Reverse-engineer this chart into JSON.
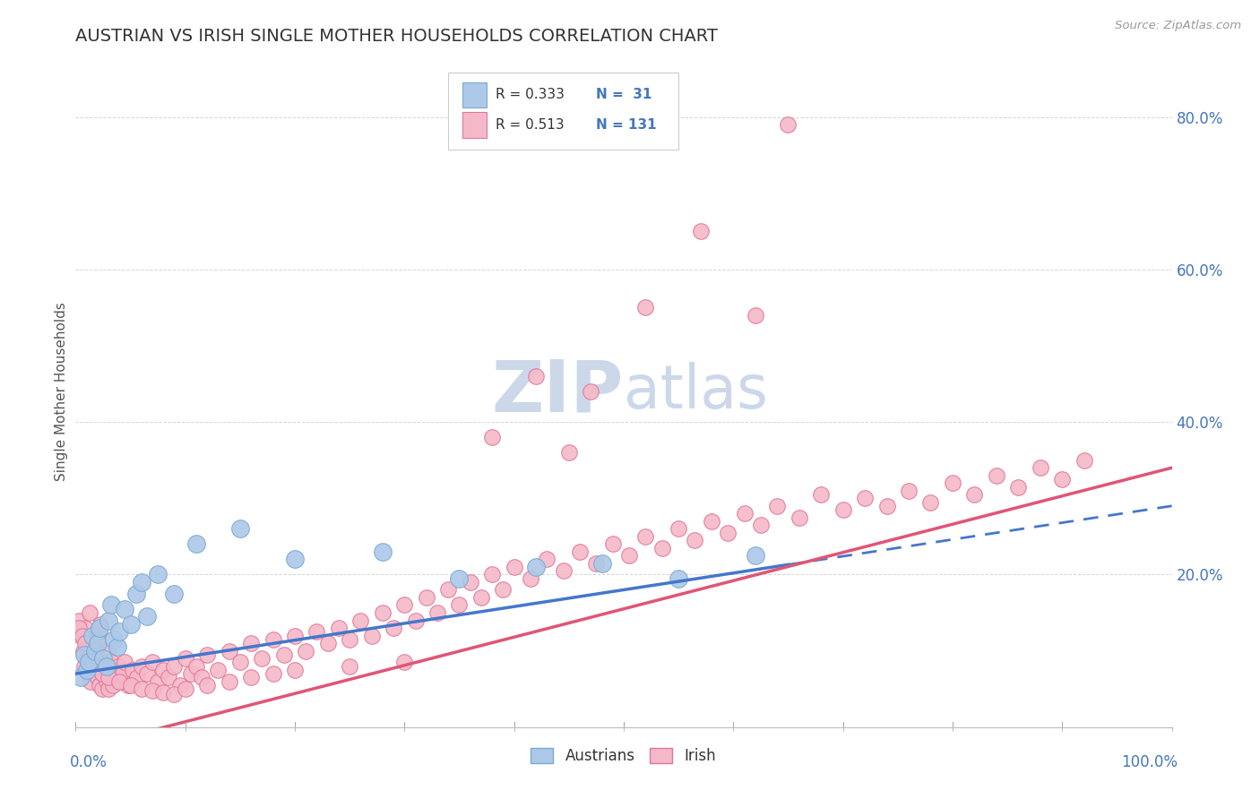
{
  "title": "AUSTRIAN VS IRISH SINGLE MOTHER HOUSEHOLDS CORRELATION CHART",
  "source_text": "Source: ZipAtlas.com",
  "ylabel": "Single Mother Households",
  "ytick_values": [
    0.0,
    0.2,
    0.4,
    0.6,
    0.8
  ],
  "ytick_labels": [
    "",
    "20.0%",
    "40.0%",
    "60.0%",
    "80.0%"
  ],
  "xlim": [
    0.0,
    1.0
  ],
  "ylim": [
    0.0,
    0.88
  ],
  "austrian_R": "0.333",
  "austrian_N": "31",
  "irish_R": "0.513",
  "irish_N": "131",
  "austrian_color": "#adc8e8",
  "austrian_edge": "#7aaad0",
  "irish_color": "#f5b8c8",
  "irish_edge": "#e07898",
  "austrian_line_color": "#4477cc",
  "irish_line_color": "#e05575",
  "background_color": "#ffffff",
  "grid_color": "#cccccc",
  "title_color": "#333333",
  "axis_label_color": "#4477bb",
  "watermark_color": "#ccd8ea",
  "legend_box_color": "#cccccc",
  "aus_line_intercept": 0.07,
  "aus_line_slope": 0.22,
  "ire_line_intercept": -0.03,
  "ire_line_slope": 0.37,
  "austrian_x": [
    0.005,
    0.008,
    0.01,
    0.012,
    0.015,
    0.018,
    0.02,
    0.022,
    0.025,
    0.028,
    0.03,
    0.032,
    0.035,
    0.038,
    0.04,
    0.045,
    0.05,
    0.055,
    0.06,
    0.065,
    0.075,
    0.09,
    0.11,
    0.15,
    0.2,
    0.28,
    0.35,
    0.42,
    0.48,
    0.55,
    0.62
  ],
  "austrian_y": [
    0.065,
    0.095,
    0.075,
    0.085,
    0.12,
    0.1,
    0.11,
    0.13,
    0.09,
    0.08,
    0.14,
    0.16,
    0.115,
    0.105,
    0.125,
    0.155,
    0.135,
    0.175,
    0.19,
    0.145,
    0.2,
    0.175,
    0.24,
    0.26,
    0.22,
    0.23,
    0.195,
    0.21,
    0.215,
    0.195,
    0.225
  ],
  "irish_x": [
    0.003,
    0.005,
    0.007,
    0.008,
    0.009,
    0.01,
    0.011,
    0.012,
    0.013,
    0.014,
    0.015,
    0.016,
    0.017,
    0.018,
    0.019,
    0.02,
    0.021,
    0.022,
    0.023,
    0.024,
    0.025,
    0.026,
    0.027,
    0.028,
    0.029,
    0.03,
    0.031,
    0.032,
    0.033,
    0.034,
    0.035,
    0.037,
    0.039,
    0.041,
    0.043,
    0.045,
    0.048,
    0.052,
    0.056,
    0.06,
    0.065,
    0.07,
    0.075,
    0.08,
    0.085,
    0.09,
    0.095,
    0.1,
    0.105,
    0.11,
    0.115,
    0.12,
    0.13,
    0.14,
    0.15,
    0.16,
    0.17,
    0.18,
    0.19,
    0.2,
    0.21,
    0.22,
    0.23,
    0.24,
    0.25,
    0.26,
    0.27,
    0.28,
    0.29,
    0.3,
    0.31,
    0.32,
    0.33,
    0.34,
    0.35,
    0.36,
    0.37,
    0.38,
    0.39,
    0.4,
    0.415,
    0.43,
    0.445,
    0.46,
    0.475,
    0.49,
    0.505,
    0.52,
    0.535,
    0.55,
    0.565,
    0.58,
    0.595,
    0.61,
    0.625,
    0.64,
    0.66,
    0.68,
    0.7,
    0.72,
    0.74,
    0.76,
    0.78,
    0.8,
    0.82,
    0.84,
    0.86,
    0.88,
    0.9,
    0.92,
    0.003,
    0.006,
    0.009,
    0.012,
    0.018,
    0.024,
    0.03,
    0.04,
    0.05,
    0.06,
    0.07,
    0.08,
    0.09,
    0.1,
    0.12,
    0.14,
    0.16,
    0.18,
    0.2,
    0.25,
    0.3
  ],
  "irish_y": [
    0.14,
    0.12,
    0.1,
    0.08,
    0.13,
    0.09,
    0.11,
    0.07,
    0.15,
    0.06,
    0.085,
    0.095,
    0.075,
    0.105,
    0.115,
    0.065,
    0.125,
    0.055,
    0.135,
    0.05,
    0.08,
    0.07,
    0.09,
    0.06,
    0.1,
    0.05,
    0.075,
    0.085,
    0.065,
    0.055,
    0.075,
    0.065,
    0.08,
    0.06,
    0.07,
    0.085,
    0.055,
    0.075,
    0.065,
    0.08,
    0.07,
    0.085,
    0.06,
    0.075,
    0.065,
    0.08,
    0.055,
    0.09,
    0.07,
    0.08,
    0.065,
    0.095,
    0.075,
    0.1,
    0.085,
    0.11,
    0.09,
    0.115,
    0.095,
    0.12,
    0.1,
    0.125,
    0.11,
    0.13,
    0.115,
    0.14,
    0.12,
    0.15,
    0.13,
    0.16,
    0.14,
    0.17,
    0.15,
    0.18,
    0.16,
    0.19,
    0.17,
    0.2,
    0.18,
    0.21,
    0.195,
    0.22,
    0.205,
    0.23,
    0.215,
    0.24,
    0.225,
    0.25,
    0.235,
    0.26,
    0.245,
    0.27,
    0.255,
    0.28,
    0.265,
    0.29,
    0.275,
    0.305,
    0.285,
    0.3,
    0.29,
    0.31,
    0.295,
    0.32,
    0.305,
    0.33,
    0.315,
    0.34,
    0.325,
    0.35,
    0.13,
    0.12,
    0.11,
    0.09,
    0.08,
    0.07,
    0.065,
    0.06,
    0.055,
    0.05,
    0.048,
    0.045,
    0.043,
    0.05,
    0.055,
    0.06,
    0.065,
    0.07,
    0.075,
    0.08,
    0.085
  ],
  "irish_outliers_x": [
    0.38,
    0.42,
    0.45,
    0.47,
    0.52,
    0.57,
    0.62,
    0.65
  ],
  "irish_outliers_y": [
    0.38,
    0.46,
    0.36,
    0.44,
    0.55,
    0.65,
    0.54,
    0.79
  ]
}
